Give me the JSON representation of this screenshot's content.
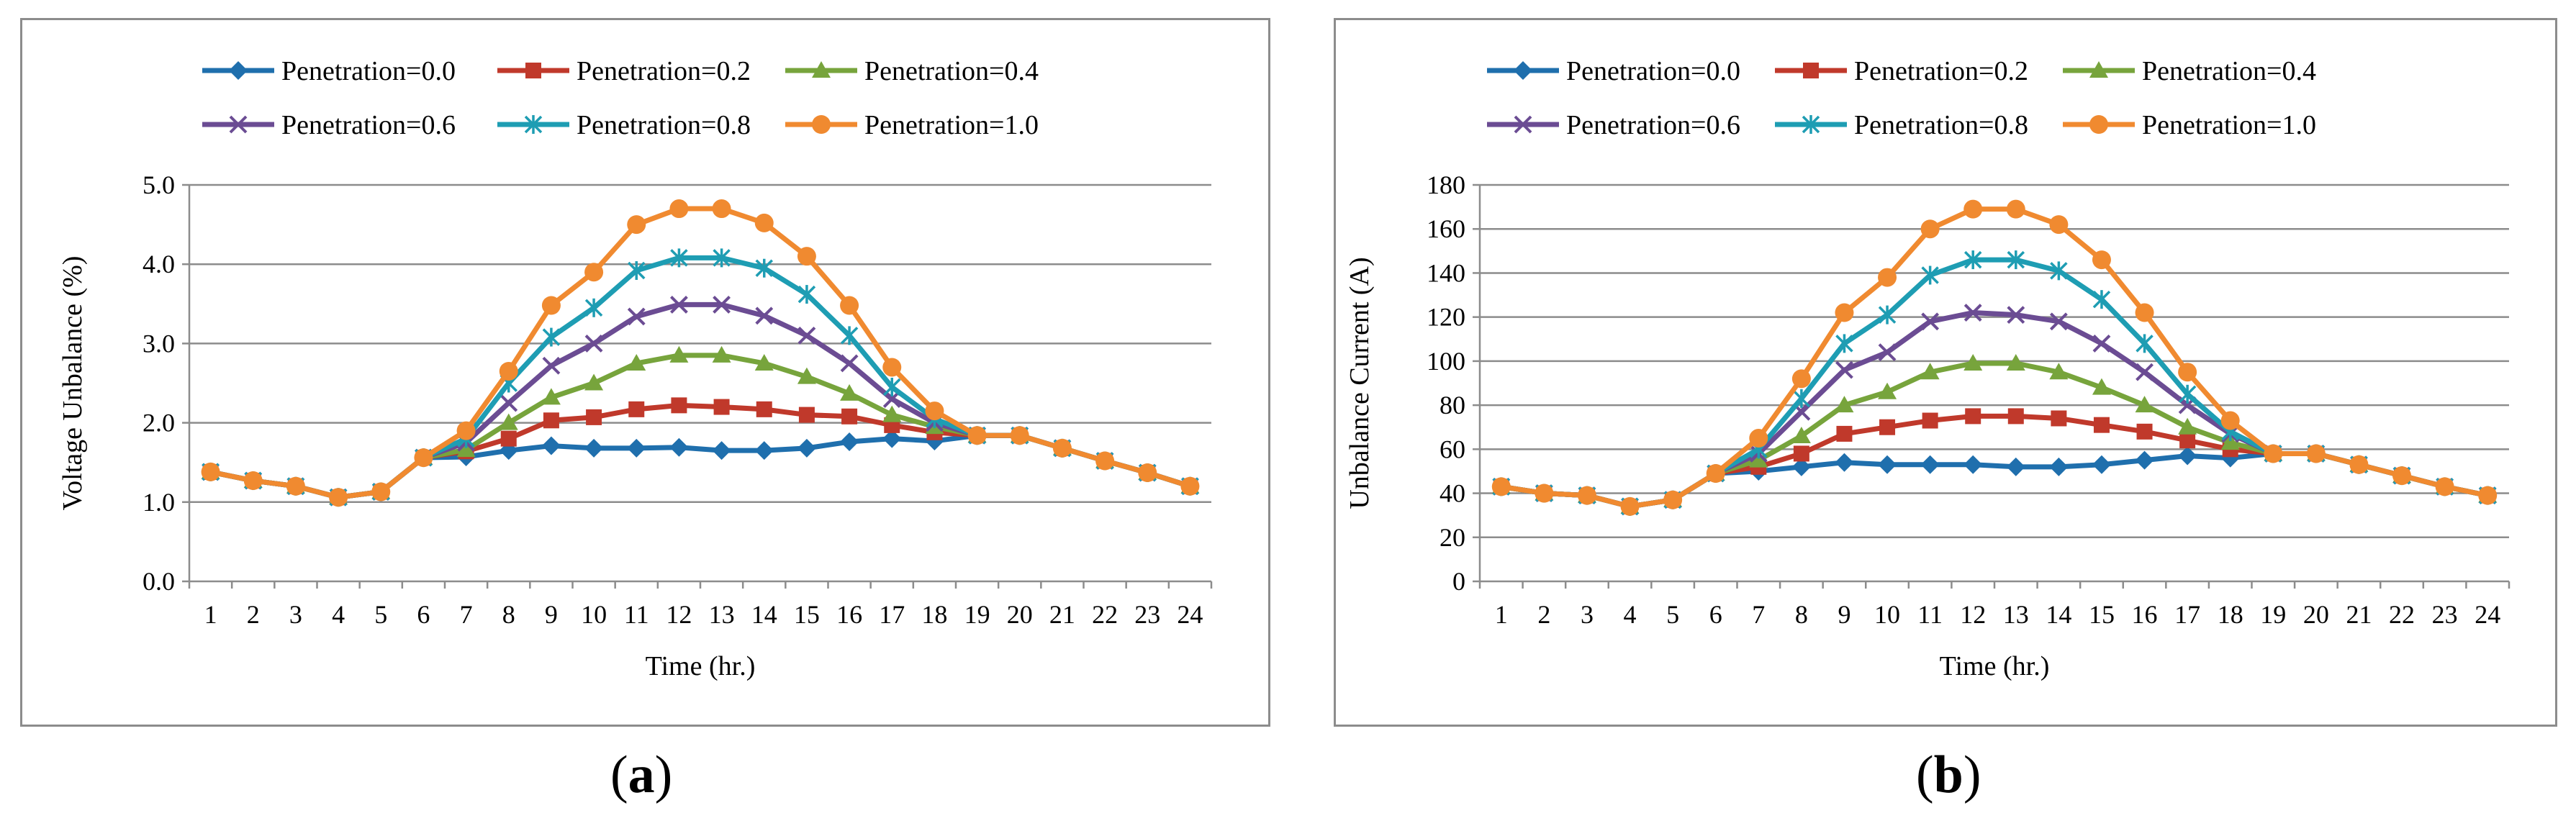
{
  "chart_data": [
    {
      "type": "line",
      "panel_label": "a",
      "xlabel": "Time (hr.)",
      "ylabel": "Voltage Unbalance (%)",
      "x": [
        1,
        2,
        3,
        4,
        5,
        6,
        7,
        8,
        9,
        10,
        11,
        12,
        13,
        14,
        15,
        16,
        17,
        18,
        19,
        20,
        21,
        22,
        23,
        24
      ],
      "ylim": [
        0,
        5
      ],
      "yticks": [
        "0.0",
        "1.0",
        "2.0",
        "3.0",
        "4.0",
        "5.0"
      ],
      "ytick_values": [
        0,
        1,
        2,
        3,
        4,
        5
      ],
      "grid": true,
      "legend_position": "top",
      "series": [
        {
          "name": "Penetration=0.0",
          "marker": "diamond",
          "color": "#1f6fad",
          "values": [
            1.38,
            1.27,
            1.2,
            1.06,
            1.13,
            1.56,
            1.57,
            1.65,
            1.71,
            1.68,
            1.68,
            1.69,
            1.65,
            1.65,
            1.68,
            1.76,
            1.8,
            1.77,
            1.84,
            1.84,
            1.68,
            1.52,
            1.37,
            1.2
          ]
        },
        {
          "name": "Penetration=0.2",
          "marker": "square",
          "color": "#c0392b",
          "values": [
            1.38,
            1.27,
            1.2,
            1.06,
            1.13,
            1.56,
            1.64,
            1.8,
            2.03,
            2.07,
            2.17,
            2.22,
            2.2,
            2.17,
            2.1,
            2.08,
            1.97,
            1.88,
            1.84,
            1.84,
            1.68,
            1.52,
            1.37,
            1.2
          ]
        },
        {
          "name": "Penetration=0.4",
          "marker": "triangle",
          "color": "#77a43c",
          "values": [
            1.38,
            1.27,
            1.2,
            1.06,
            1.13,
            1.56,
            1.66,
            2.0,
            2.32,
            2.5,
            2.75,
            2.85,
            2.85,
            2.75,
            2.58,
            2.37,
            2.1,
            1.95,
            1.84,
            1.84,
            1.68,
            1.52,
            1.37,
            1.2
          ]
        },
        {
          "name": "Penetration=0.6",
          "marker": "x",
          "color": "#6b4c93",
          "values": [
            1.38,
            1.27,
            1.2,
            1.06,
            1.13,
            1.56,
            1.75,
            2.25,
            2.72,
            3.0,
            3.34,
            3.49,
            3.49,
            3.35,
            3.1,
            2.75,
            2.3,
            2.0,
            1.84,
            1.84,
            1.68,
            1.52,
            1.37,
            1.2
          ]
        },
        {
          "name": "Penetration=0.8",
          "marker": "asterisk",
          "color": "#1e9db3",
          "values": [
            1.38,
            1.27,
            1.2,
            1.06,
            1.13,
            1.56,
            1.8,
            2.5,
            3.08,
            3.45,
            3.92,
            4.08,
            4.08,
            3.95,
            3.62,
            3.1,
            2.45,
            2.05,
            1.84,
            1.84,
            1.68,
            1.52,
            1.37,
            1.2
          ]
        },
        {
          "name": "Penetration=1.0",
          "marker": "circle",
          "color": "#f08a30",
          "values": [
            1.38,
            1.27,
            1.2,
            1.06,
            1.13,
            1.56,
            1.9,
            2.65,
            3.48,
            3.9,
            4.5,
            4.7,
            4.7,
            4.52,
            4.1,
            3.48,
            2.7,
            2.15,
            1.84,
            1.84,
            1.68,
            1.52,
            1.37,
            1.2
          ]
        }
      ]
    },
    {
      "type": "line",
      "panel_label": "b",
      "xlabel": "Time (hr.)",
      "ylabel": "Unbalance Current (A)",
      "x": [
        1,
        2,
        3,
        4,
        5,
        6,
        7,
        8,
        9,
        10,
        11,
        12,
        13,
        14,
        15,
        16,
        17,
        18,
        19,
        20,
        21,
        22,
        23,
        24
      ],
      "ylim": [
        0,
        180
      ],
      "yticks": [
        "0",
        "20",
        "40",
        "60",
        "80",
        "100",
        "120",
        "140",
        "160",
        "180"
      ],
      "ytick_values": [
        0,
        20,
        40,
        60,
        80,
        100,
        120,
        140,
        160,
        180
      ],
      "grid": true,
      "legend_position": "top",
      "series": [
        {
          "name": "Penetration=0.0",
          "marker": "diamond",
          "color": "#1f6fad",
          "values": [
            43,
            40,
            39,
            34,
            37,
            49,
            50,
            52,
            54,
            53,
            53,
            53,
            52,
            52,
            53,
            55,
            57,
            56,
            58,
            58,
            53,
            48,
            43,
            39
          ]
        },
        {
          "name": "Penetration=0.2",
          "marker": "square",
          "color": "#c0392b",
          "values": [
            43,
            40,
            39,
            34,
            37,
            49,
            52,
            58,
            67,
            70,
            73,
            75,
            75,
            74,
            71,
            68,
            64,
            60,
            58,
            58,
            53,
            48,
            43,
            39
          ]
        },
        {
          "name": "Penetration=0.4",
          "marker": "triangle",
          "color": "#77a43c",
          "values": [
            43,
            40,
            39,
            34,
            37,
            49,
            55,
            66,
            80,
            86,
            95,
            99,
            99,
            95,
            88,
            80,
            70,
            63,
            58,
            58,
            53,
            48,
            43,
            39
          ]
        },
        {
          "name": "Penetration=0.6",
          "marker": "x",
          "color": "#6b4c93",
          "values": [
            43,
            40,
            39,
            34,
            37,
            49,
            58,
            77,
            96,
            104,
            118,
            122,
            121,
            118,
            108,
            95,
            80,
            67,
            58,
            58,
            53,
            48,
            43,
            39
          ]
        },
        {
          "name": "Penetration=0.8",
          "marker": "asterisk",
          "color": "#1e9db3",
          "values": [
            43,
            40,
            39,
            34,
            37,
            49,
            60,
            83,
            108,
            121,
            139,
            146,
            146,
            141,
            128,
            108,
            85,
            68,
            58,
            58,
            53,
            48,
            43,
            39
          ]
        },
        {
          "name": "Penetration=1.0",
          "marker": "circle",
          "color": "#f08a30",
          "values": [
            43,
            40,
            39,
            34,
            37,
            49,
            65,
            92,
            122,
            138,
            160,
            169,
            169,
            162,
            146,
            122,
            95,
            73,
            58,
            58,
            53,
            48,
            43,
            39
          ]
        }
      ]
    }
  ]
}
